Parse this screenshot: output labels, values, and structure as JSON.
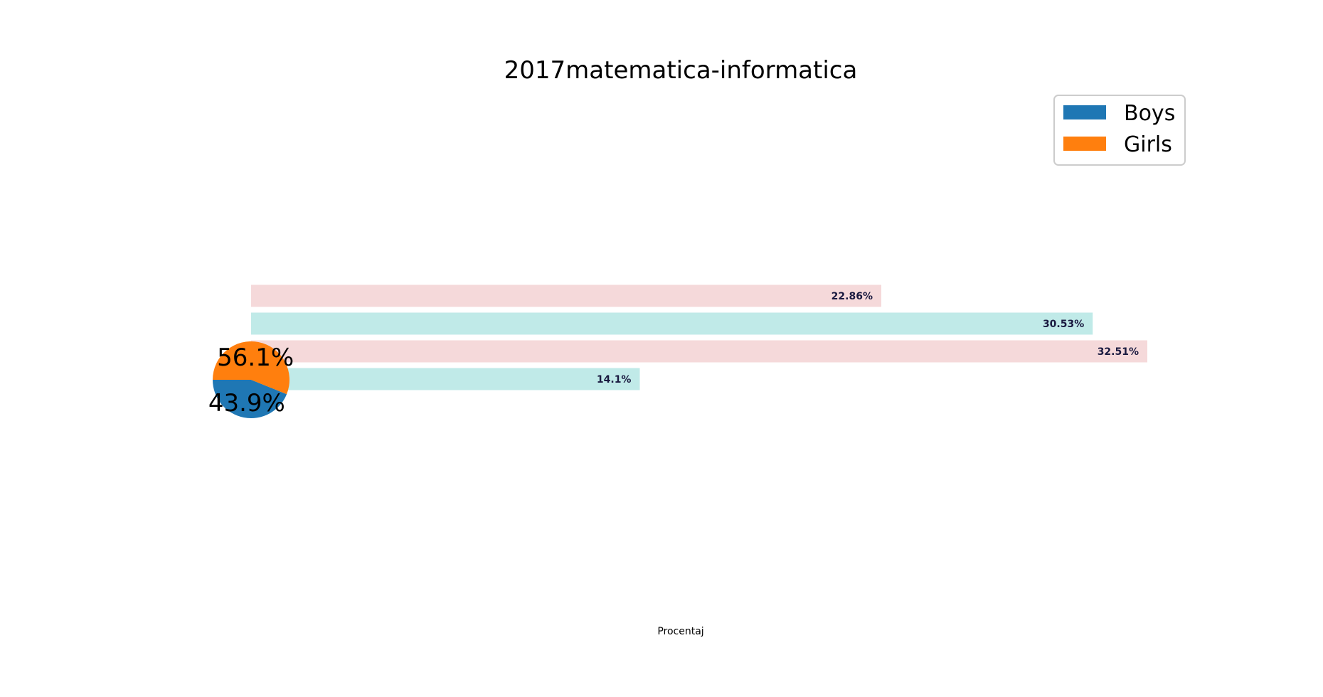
{
  "chart_data": [
    {
      "type": "bar",
      "orientation": "horizontal",
      "title": "2017matematica-informatica",
      "xlabel": "Procentaj",
      "ylabel": "",
      "values": [
        14.1,
        32.51,
        30.53,
        22.86
      ],
      "labels": [
        "14.1%",
        "32.51%",
        "30.53%",
        "22.86%"
      ],
      "colors": [
        "#c0eae8",
        "#f5d9da",
        "#c0eae8",
        "#f5d9da"
      ],
      "xlim": [
        0,
        32.51
      ],
      "grid": false
    },
    {
      "type": "pie",
      "legend": [
        "Boys",
        "Girls"
      ],
      "values": [
        43.9,
        56.1
      ],
      "labels": [
        "43.9%",
        "56.1%"
      ],
      "colors": [
        "#1f77b4",
        "#ff7f0e"
      ],
      "legend_placement": "top-right"
    }
  ]
}
